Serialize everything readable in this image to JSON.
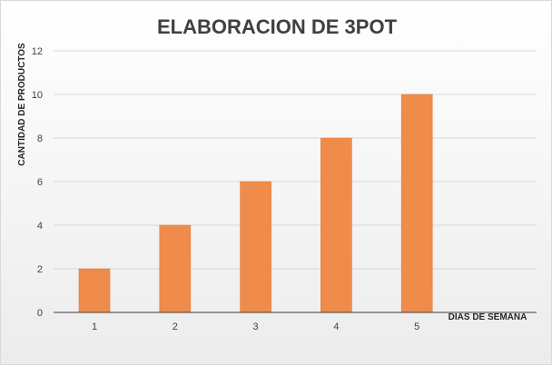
{
  "chart_data": {
    "type": "bar",
    "title": "ELABORACION DE 3POT",
    "xlabel": "DIAS DE SEMANA",
    "ylabel": "CANTIDAD DE PRODUCTOS",
    "categories": [
      "1",
      "2",
      "3",
      "4",
      "5"
    ],
    "values": [
      2,
      4,
      6,
      8,
      10
    ],
    "ylim": [
      0,
      12
    ],
    "yticks": [
      "0",
      "2",
      "4",
      "6",
      "8",
      "10",
      "12"
    ],
    "grid": true,
    "bar_color": "#f08c4b",
    "bar_border_color": "#e2793a"
  }
}
